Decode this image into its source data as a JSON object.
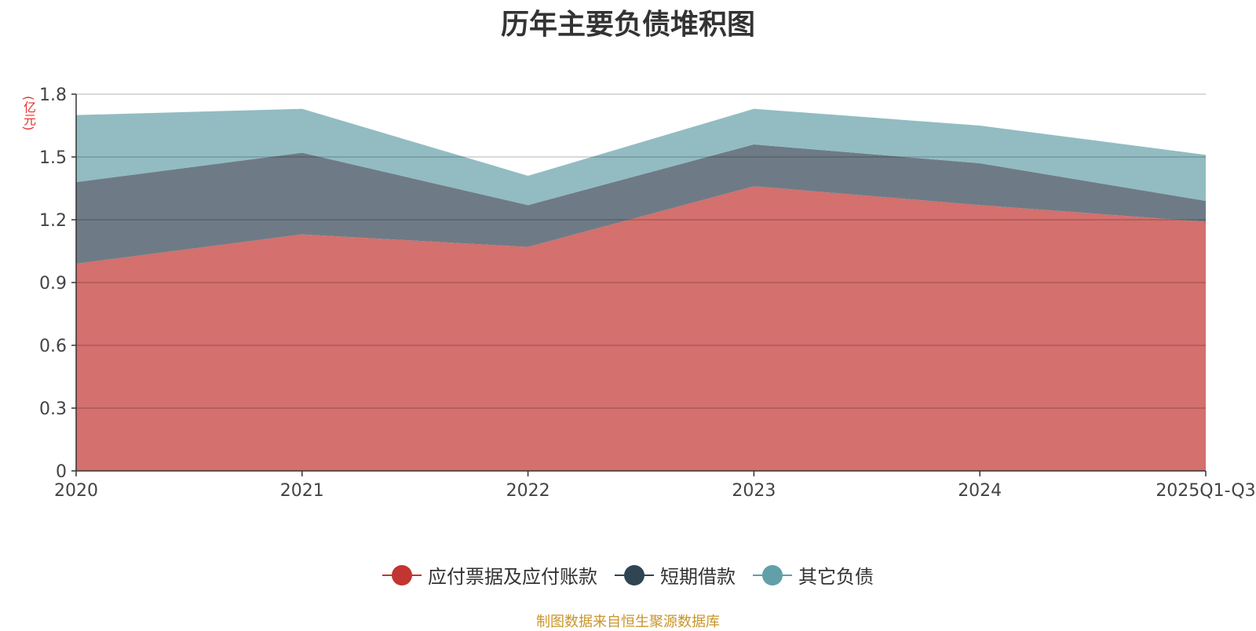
{
  "chart_data": {
    "type": "area",
    "stacked": true,
    "title": "历年主要负债堆积图",
    "unit_label": "(亿元)",
    "categories": [
      "2020",
      "2021",
      "2022",
      "2023",
      "2024",
      "2025Q1-Q3"
    ],
    "y_ticks": [
      "0",
      "0.3",
      "0.6",
      "0.9",
      "1.2",
      "1.5",
      "1.8"
    ],
    "ylim": [
      0,
      1.8
    ],
    "series": [
      {
        "name": "应付票据及应付账款",
        "color": "#c23531",
        "fill": "#d4706d",
        "values": [
          0.99,
          1.13,
          1.07,
          1.36,
          1.27,
          1.19
        ]
      },
      {
        "name": "短期借款",
        "color": "#2f4554",
        "fill": "#6e7b86",
        "values": [
          0.39,
          0.39,
          0.2,
          0.2,
          0.2,
          0.1
        ]
      },
      {
        "name": "其它负债",
        "color": "#61a0a8",
        "fill": "#92bcc2",
        "values": [
          0.32,
          0.21,
          0.14,
          0.17,
          0.18,
          0.22
        ]
      }
    ],
    "legend_position": "bottom-center",
    "source": "制图数据来自恒生聚源数据库"
  }
}
